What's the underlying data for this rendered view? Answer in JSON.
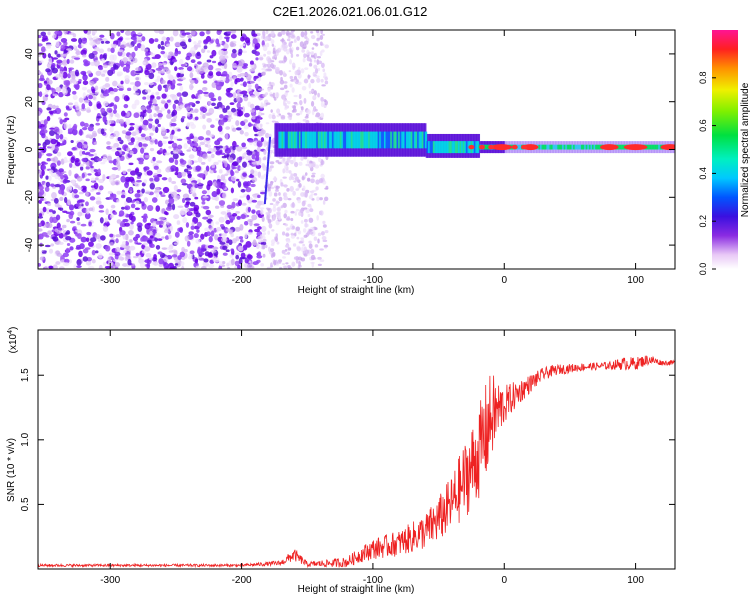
{
  "title": "C2E1.2026.021.06.01.G12",
  "chart_data": [
    {
      "type": "heatmap",
      "xlabel": "Height of straight line (km)",
      "ylabel": "Frequency (Hz)",
      "xlim": [
        -355,
        130
      ],
      "ylim": [
        -50,
        50
      ],
      "xticks": [
        -300,
        -200,
        -100,
        0,
        100
      ],
      "xtick_labels": [
        "-300",
        "-200",
        "-100",
        "0",
        "100"
      ],
      "yticks": [
        -40,
        -20,
        0,
        20,
        40
      ],
      "ytick_labels": [
        "-40",
        "-20",
        "0",
        "20",
        "40"
      ],
      "colorbar": {
        "label": "Normalized spectral amplitude",
        "range": [
          0,
          1
        ],
        "ticks": [
          0.0,
          0.2,
          0.4,
          0.6,
          0.8
        ],
        "tick_labels": [
          "0.0",
          "0.2",
          "0.4",
          "0.6",
          "0.8"
        ]
      },
      "regions": [
        {
          "x": [
            -355,
            -185
          ],
          "freq_spread": 50,
          "amplitude": 0.12,
          "description_value": 0.12
        },
        {
          "x": [
            -185,
            -135
          ],
          "freq_spread": 50,
          "amplitude": 0.05
        },
        {
          "x": [
            -175,
            -60
          ],
          "freq_center": 4,
          "freq_halfwidth": 6,
          "amplitude": 0.35
        },
        {
          "x": [
            -60,
            -20
          ],
          "freq_center": 1,
          "freq_halfwidth": 4,
          "amplitude": 0.4
        },
        {
          "x": [
            -20,
            130
          ],
          "freq_center": 1,
          "freq_halfwidth": 2,
          "amplitude": 0.9
        }
      ]
    },
    {
      "type": "line",
      "xlabel": "Height of straight line (km)",
      "ylabel": "SNR (10 * v/v)",
      "yscale_label": "(x10",
      "yscale_exponent": "4",
      "yscale_close": ")",
      "xlim": [
        -355,
        130
      ],
      "ylim": [
        0,
        1.85
      ],
      "xticks": [
        -300,
        -200,
        -100,
        0,
        100
      ],
      "xtick_labels": [
        "-300",
        "-200",
        "-100",
        "0",
        "100"
      ],
      "yticks": [
        0.5,
        1.0,
        1.5
      ],
      "ytick_labels": [
        "0.5",
        "1.0",
        "1.5"
      ],
      "series": [
        {
          "name": "SNR",
          "color": "#ee2222",
          "x": [
            -355,
            -300,
            -250,
            -200,
            -170,
            -160,
            -150,
            -120,
            -110,
            -100,
            -80,
            -60,
            -50,
            -40,
            -30,
            -20,
            -15,
            -10,
            0,
            10,
            20,
            30,
            40,
            60,
            80,
            90,
            100,
            110,
            120,
            130
          ],
          "y": [
            0.03,
            0.03,
            0.03,
            0.03,
            0.05,
            0.12,
            0.04,
            0.06,
            0.12,
            0.17,
            0.22,
            0.32,
            0.42,
            0.55,
            0.75,
            0.95,
            1.1,
            1.25,
            1.3,
            1.38,
            1.45,
            1.52,
            1.55,
            1.57,
            1.58,
            1.6,
            1.6,
            1.63,
            1.6,
            1.6
          ],
          "noise": [
            0.01,
            0.01,
            0.01,
            0.01,
            0.02,
            0.05,
            0.02,
            0.04,
            0.06,
            0.08,
            0.1,
            0.14,
            0.18,
            0.22,
            0.3,
            0.35,
            0.4,
            0.35,
            0.15,
            0.1,
            0.07,
            0.05,
            0.04,
            0.03,
            0.03,
            0.05,
            0.05,
            0.04,
            0.02,
            0.02
          ]
        }
      ]
    }
  ]
}
